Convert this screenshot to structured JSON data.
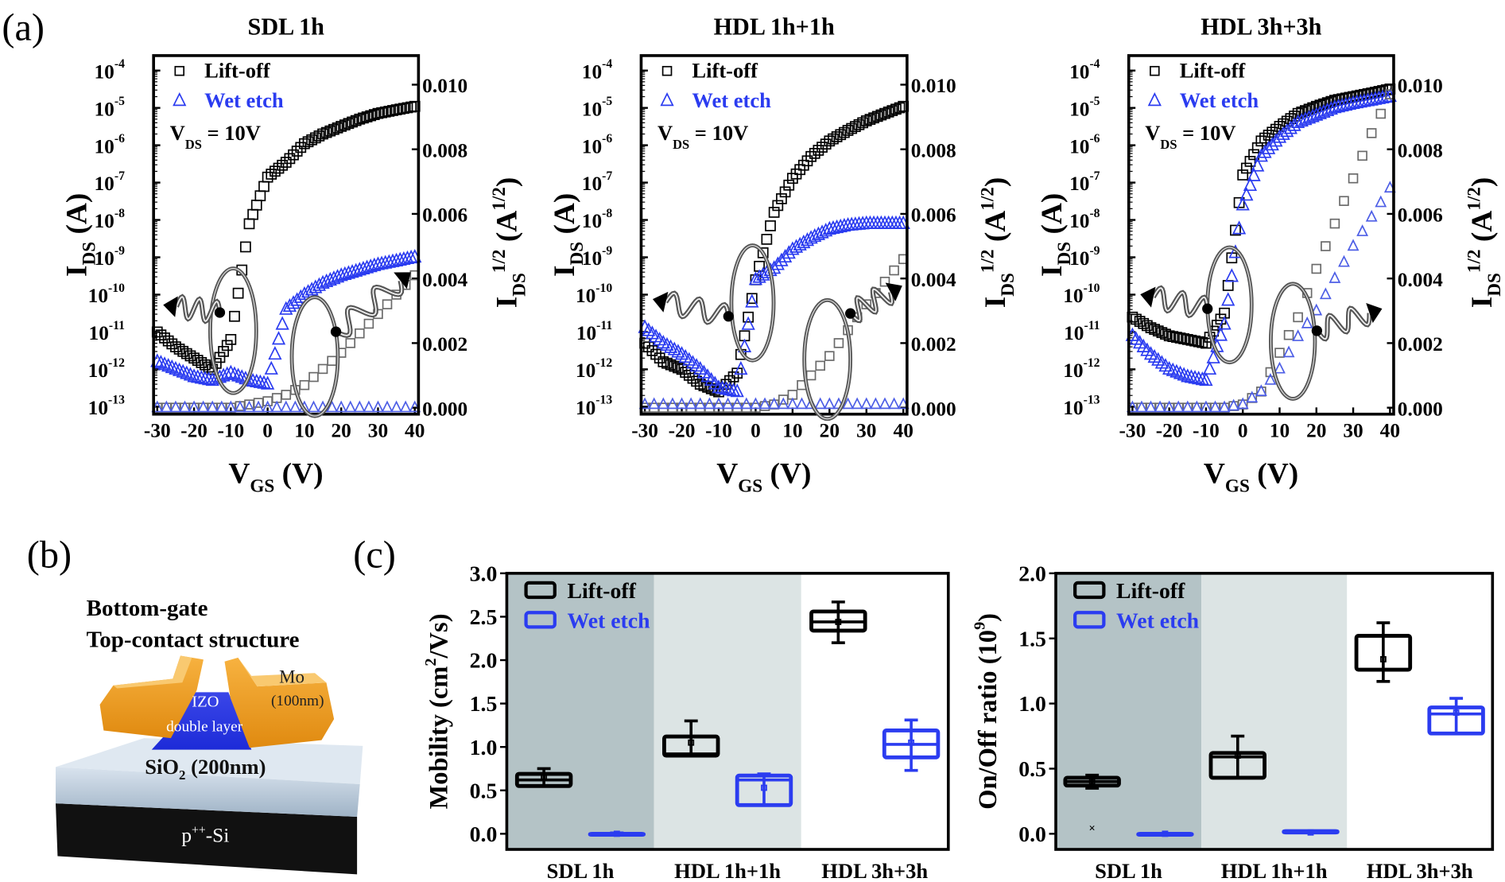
{
  "panel_labels": {
    "a": "(a)",
    "b": "(b)",
    "c": "(c)"
  },
  "colors": {
    "lift_off": "#000000",
    "wet_etch": "#2b3cf0",
    "sqrt_lift_off": "#6a6a6a",
    "sqrt_wet_etch": "#4d5ee6",
    "band_dark": "#b4c3c6",
    "band_light": "#dce4e4"
  },
  "transfer_common": {
    "legend": {
      "lift_off": "Lift-off",
      "wet_etch": "Wet etch"
    },
    "vds_label": {
      "main": "V",
      "sub": "DS",
      "rest": " = 10V"
    },
    "left_axis_title": [
      [
        "I",
        ""
      ],
      [
        "DS",
        "sub"
      ],
      [
        " (A)",
        ""
      ]
    ],
    "right_axis_title": [
      [
        "I",
        ""
      ],
      [
        "DS",
        "sub"
      ],
      [
        "1/2",
        "sup"
      ],
      [
        " (A",
        ""
      ],
      [
        "1/2",
        "sup"
      ],
      [
        ")",
        ""
      ]
    ],
    "x_axis_title": [
      [
        "V",
        ""
      ],
      [
        "GS",
        "sub"
      ],
      [
        " (V)",
        ""
      ]
    ],
    "x_ticks": [
      "-30",
      "-20",
      "-10",
      "0",
      "10",
      "20",
      "30",
      "40"
    ],
    "left_ticks": [
      "10^-13",
      "10^-12",
      "10^-11",
      "10^-10",
      "10^-9",
      "10^-8",
      "10^-7",
      "10^-6",
      "10^-5",
      "10^-4"
    ],
    "right_ticks": [
      "0.000",
      "0.002",
      "0.004",
      "0.006",
      "0.008",
      "0.010"
    ]
  },
  "chart_data": [
    {
      "type": "scatter",
      "title": "SDL 1h",
      "xlabel": "VGS (V)",
      "ylabel": "IDS (A)",
      "y2label": "IDS^1/2 (A^1/2)",
      "xlim": [
        -30,
        40
      ],
      "ylim": [
        1e-13,
        0.0001
      ],
      "yscale": "log",
      "y2lim": [
        0,
        0.01
      ],
      "x": [
        -30,
        -25,
        -20,
        -15,
        -10,
        -5,
        0,
        5,
        10,
        15,
        20,
        25,
        30,
        35,
        40
      ],
      "series": [
        {
          "name": "Lift-off",
          "axis": "left",
          "marker": "square",
          "values": [
            1e-11,
            4e-12,
            2e-12,
            1e-12,
            6.3e-12,
            7.9e-09,
            1.4e-07,
            3.5e-07,
            1.1e-06,
            2e-06,
            3.2e-06,
            5e-06,
            7.1e-06,
            8.9e-06,
            1.1e-05
          ]
        },
        {
          "name": "Wet etch",
          "axis": "left",
          "marker": "triangle",
          "values": [
            1.6e-12,
            1e-12,
            6.3e-13,
            5e-13,
            7.9e-13,
            5e-13,
            4e-13,
            4e-11,
            1e-10,
            2e-10,
            3.2e-10,
            4.5e-10,
            6.3e-10,
            7.9e-10,
            1e-09
          ]
        },
        {
          "name": "Lift-off",
          "axis": "right",
          "marker": "square",
          "values": [
            0,
            0,
            0,
            0,
            0,
            0.0001,
            0.0002,
            0.0004,
            0.0007,
            0.0012,
            0.0017,
            0.0023,
            0.0029,
            0.0035,
            0.0041
          ]
        },
        {
          "name": "Wet etch",
          "axis": "right",
          "marker": "triangle",
          "values": [
            0,
            0,
            0,
            0,
            0,
            0,
            0,
            0,
            0,
            0,
            0,
            0,
            0,
            0,
            0
          ]
        }
      ]
    },
    {
      "type": "scatter",
      "title": "HDL 1h+1h",
      "xlabel": "VGS (V)",
      "ylabel": "IDS (A)",
      "y2label": "IDS^1/2 (A^1/2)",
      "xlim": [
        -30,
        40
      ],
      "ylim": [
        1e-13,
        0.0001
      ],
      "yscale": "log",
      "y2lim": [
        0,
        0.01
      ],
      "x": [
        -30,
        -25,
        -20,
        -15,
        -10,
        -5,
        0,
        5,
        10,
        15,
        20,
        25,
        30,
        35,
        40
      ],
      "series": [
        {
          "name": "Lift-off",
          "axis": "left",
          "marker": "square",
          "values": [
            5e-12,
            1.6e-12,
            1e-12,
            4e-13,
            2.5e-13,
            7.9e-13,
            2.5e-10,
            1.6e-08,
            1.3e-07,
            5e-07,
            1.3e-06,
            2.5e-06,
            4.5e-06,
            7.1e-06,
            1.1e-05
          ]
        },
        {
          "name": "Wet etch",
          "axis": "left",
          "marker": "triangle",
          "values": [
            1.3e-11,
            5e-12,
            2.5e-12,
            1e-12,
            3.2e-13,
            2.5e-13,
            2.5e-10,
            5e-10,
            1.6e-09,
            3.2e-09,
            5.6e-09,
            7.1e-09,
            7.9e-09,
            7.9e-09,
            7.9e-09
          ]
        },
        {
          "name": "Lift-off",
          "axis": "right",
          "marker": "square",
          "values": [
            0,
            0,
            0,
            0,
            0,
            0,
            0,
            0.0001,
            0.0004,
            0.001,
            0.0016,
            0.0024,
            0.0032,
            0.0039,
            0.0046
          ]
        },
        {
          "name": "Wet etch",
          "axis": "right",
          "marker": "triangle",
          "values": [
            0.0001,
            0.0001,
            0.0001,
            0.0001,
            0.0001,
            0.0001,
            0.0001,
            0.0001,
            0.0001,
            0.0001,
            0.0001,
            0.0001,
            0.0001,
            0.0001,
            0.0001
          ]
        }
      ]
    },
    {
      "type": "scatter",
      "title": "HDL 3h+3h",
      "xlabel": "VGS (V)",
      "ylabel": "IDS (A)",
      "y2label": "IDS^1/2 (A^1/2)",
      "xlim": [
        -30,
        40
      ],
      "ylim": [
        1e-13,
        0.0001
      ],
      "yscale": "log",
      "y2lim": [
        0,
        0.01
      ],
      "x": [
        -30,
        -25,
        -20,
        -15,
        -10,
        -5,
        0,
        5,
        10,
        15,
        20,
        25,
        30,
        35,
        40
      ],
      "series": [
        {
          "name": "Lift-off",
          "axis": "left",
          "marker": "square",
          "values": [
            2.5e-11,
            1.3e-11,
            7.9e-12,
            6.3e-12,
            5e-12,
            3.2e-11,
            1.6e-07,
            1.3e-06,
            3.2e-06,
            7.1e-06,
            1.1e-05,
            1.6e-05,
            2e-05,
            2.5e-05,
            3.2e-05
          ]
        },
        {
          "name": "Wet etch",
          "axis": "left",
          "marker": "triangle",
          "values": [
            7.9e-12,
            2.5e-12,
            1e-12,
            6.3e-13,
            5e-13,
            1.6e-11,
            2.5e-08,
            5e-07,
            1.6e-06,
            4e-06,
            6.3e-06,
            1e-05,
            1.3e-05,
            1.6e-05,
            2e-05
          ]
        },
        {
          "name": "Lift-off",
          "axis": "right",
          "marker": "square",
          "values": [
            0,
            0,
            0,
            0,
            0,
            0,
            0.0001,
            0.0005,
            0.0017,
            0.0028,
            0.0043,
            0.0057,
            0.0071,
            0.0085,
            0.0097
          ]
        },
        {
          "name": "Wet etch",
          "axis": "right",
          "marker": "triangle",
          "values": [
            0,
            0,
            0,
            0,
            0,
            0,
            0.0001,
            0.0005,
            0.0012,
            0.0022,
            0.003,
            0.004,
            0.005,
            0.0059,
            0.0068
          ]
        }
      ]
    },
    {
      "type": "box",
      "ylabel": [
        [
          "Mobility (cm",
          ""
        ],
        [
          "2",
          "sup"
        ],
        [
          "/Vs)",
          ""
        ]
      ],
      "ylim": [
        0,
        3.0
      ],
      "y_ticks": [
        "0.0",
        "0.5",
        "1.0",
        "1.5",
        "2.0",
        "2.5",
        "3.0"
      ],
      "categories": [
        "SDL 1h",
        "HDL 1h+1h",
        "HDL 3h+3h"
      ],
      "series": [
        {
          "name": "Lift-off",
          "stats": [
            {
              "min": 0.55,
              "q1": 0.55,
              "median": 0.62,
              "q3": 0.69,
              "max": 0.75,
              "mean": 0.65
            },
            {
              "min": 0.9,
              "q1": 0.9,
              "median": 0.92,
              "q3": 1.12,
              "max": 1.3,
              "mean": 1.05
            },
            {
              "min": 2.2,
              "q1": 2.34,
              "median": 2.44,
              "q3": 2.56,
              "max": 2.67,
              "mean": 2.44
            }
          ]
        },
        {
          "name": "Wet etch",
          "stats": [
            {
              "min": 0.0,
              "q1": 0.0,
              "median": 0.0,
              "q3": 0.0,
              "max": 0.01,
              "mean": 0.0
            },
            {
              "min": 0.33,
              "q1": 0.33,
              "median": 0.62,
              "q3": 0.67,
              "max": 0.69,
              "mean": 0.53
            },
            {
              "min": 0.73,
              "q1": 0.88,
              "median": 1.03,
              "q3": 1.19,
              "max": 1.31,
              "mean": 1.05
            }
          ]
        }
      ]
    },
    {
      "type": "box",
      "ylabel": [
        [
          "On/Off ratio (10",
          ""
        ],
        [
          "9",
          "sup"
        ],
        [
          ")",
          ""
        ]
      ],
      "ylim": [
        0,
        2.0
      ],
      "y_ticks": [
        "0.0",
        "0.5",
        "1.0",
        "1.5",
        "2.0"
      ],
      "categories": [
        "SDL 1h",
        "HDL 1h+1h",
        "HDL 3h+3h"
      ],
      "series": [
        {
          "name": "Lift-off",
          "stats": [
            {
              "min": 0.35,
              "q1": 0.37,
              "median": 0.4,
              "q3": 0.43,
              "max": 0.45,
              "mean": 0.4,
              "outlier": 0.05
            },
            {
              "min": 0.43,
              "q1": 0.43,
              "median": 0.59,
              "q3": 0.62,
              "max": 0.75,
              "mean": 0.6
            },
            {
              "min": 1.17,
              "q1": 1.26,
              "median": 1.26,
              "q3": 1.52,
              "max": 1.62,
              "mean": 1.34
            }
          ]
        },
        {
          "name": "Wet etch",
          "stats": [
            {
              "min": 0.0,
              "q1": 0.0,
              "median": 0.0,
              "q3": 0.0,
              "max": 0.0,
              "mean": 0.0
            },
            {
              "min": 0.01,
              "q1": 0.01,
              "median": 0.01,
              "q3": 0.02,
              "max": 0.02,
              "mean": 0.01
            },
            {
              "min": 0.77,
              "q1": 0.77,
              "median": 0.92,
              "q3": 0.97,
              "max": 1.04,
              "mean": 0.93
            }
          ]
        }
      ]
    }
  ],
  "device": {
    "heading1": "Bottom-gate",
    "heading2": "Top-contact structure",
    "mo": "Mo",
    "mo_thickness": "(100nm)",
    "izo": "IZO",
    "izo_sub": "double layer",
    "sio2": {
      "main": "SiO",
      "sub": "2",
      "rest": " (200nm)"
    },
    "si": {
      "main": "p",
      "sup": "++",
      "rest": "-Si"
    }
  }
}
